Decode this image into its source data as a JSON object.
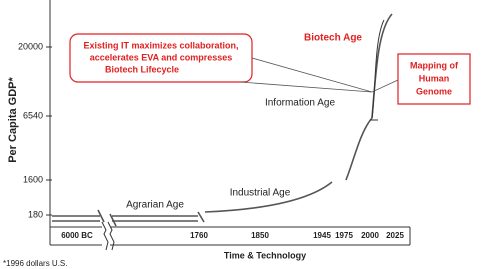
{
  "chart_data": {
    "type": "line",
    "y_label": "Per Capita GDP*",
    "x_label": "Time & Technology",
    "footnote": "*1996 dollars U.S.",
    "yticks": [
      180,
      1600,
      6540,
      20000
    ],
    "categories": [
      "6000 BC",
      "1760",
      "1850",
      "1945",
      "1975",
      "2000",
      "2025"
    ],
    "ages": [
      "Agrarian Age",
      "Industrial Age",
      "Information Age",
      "Biotech Age"
    ],
    "callout": [
      "Existing IT maximizes collaboration,",
      "accelerates EVA and compresses",
      "Biotech Lifecycle"
    ],
    "genome_box": [
      "Mapping of",
      "Human",
      "Genome"
    ]
  }
}
